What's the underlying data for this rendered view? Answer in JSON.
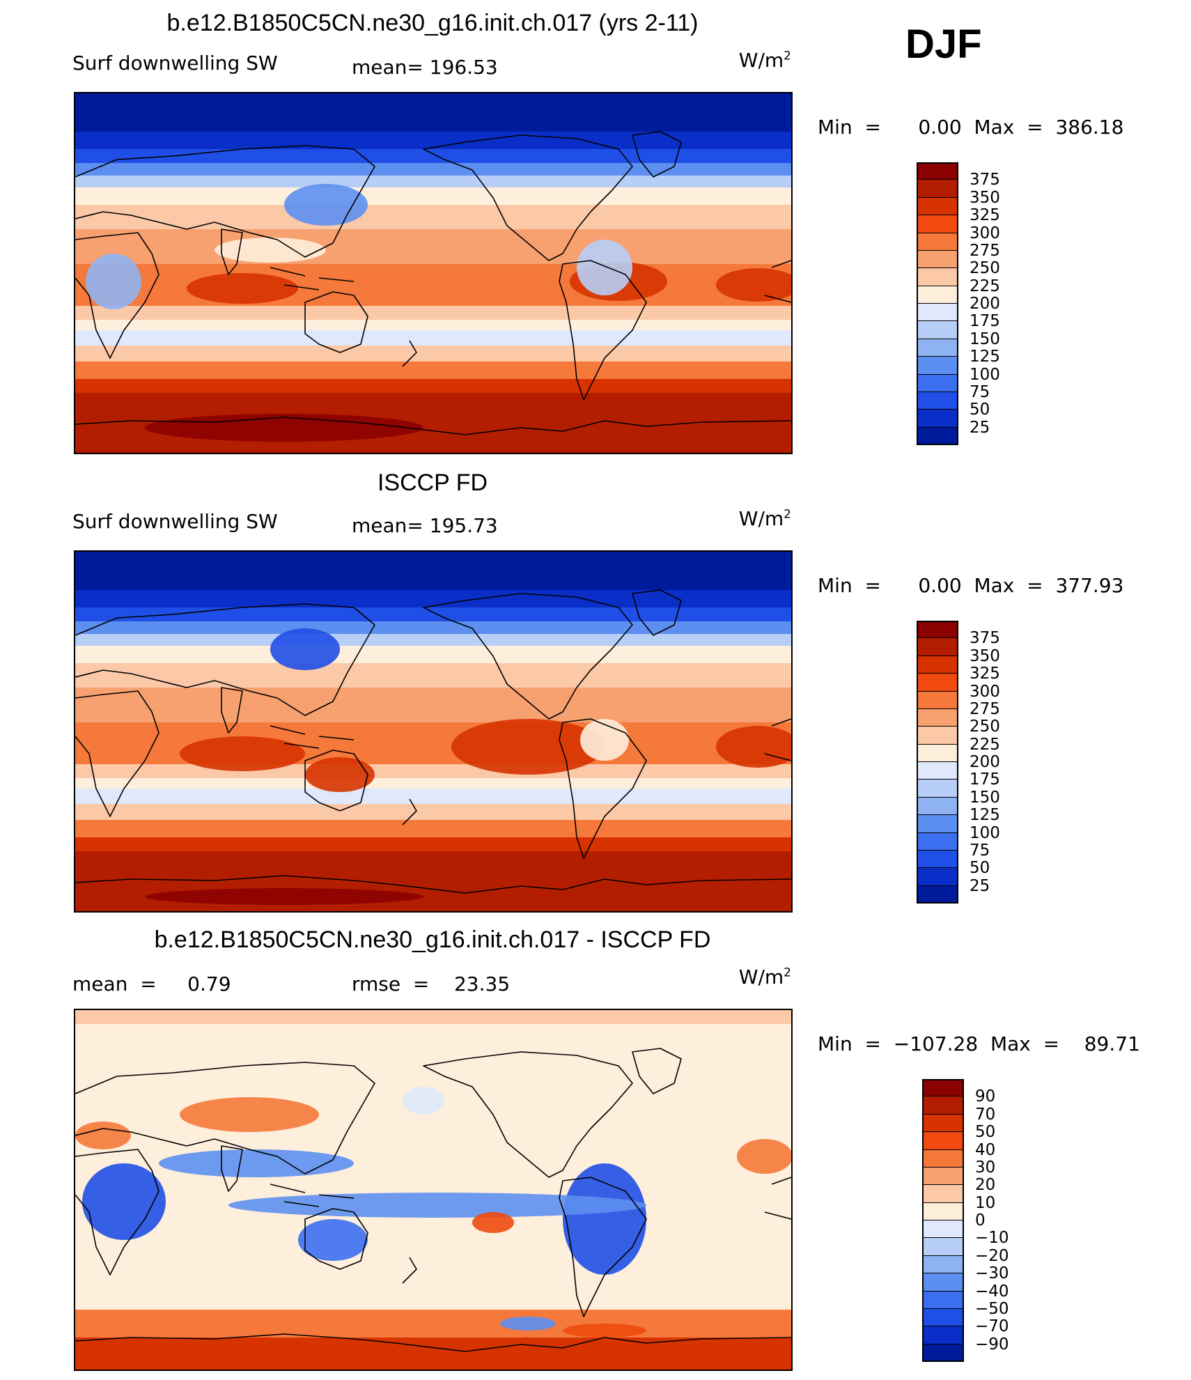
{
  "season": "DJF",
  "units": "W/m",
  "units_sup": "2",
  "panels": [
    {
      "title": "b.e12.B1850C5CN.ne30_g16.init.ch.017 (yrs 2-11)",
      "variable": "Surf downwelling SW",
      "stat1": "mean=  196.53",
      "stat2": "",
      "minmax": "Min  =      0.00  Max  =  386.18",
      "colorbar_ticks": [
        "375",
        "350",
        "325",
        "300",
        "275",
        "250",
        "225",
        "200",
        "175",
        "150",
        "125",
        "100",
        "75",
        "50",
        "25"
      ],
      "colors": [
        "#8b0000",
        "#b41e00",
        "#d73300",
        "#f04a10",
        "#f5793a",
        "#f7a070",
        "#fbc8a8",
        "#feeedc",
        "#dfe9fb",
        "#b7cef6",
        "#8fb2f2",
        "#5d8ff0",
        "#3c6ff0",
        "#1f4fe6",
        "#0a2fc8",
        "#001a9c"
      ]
    },
    {
      "title": "ISCCP FD",
      "variable": "Surf downwelling SW",
      "stat1": "mean=  195.73",
      "stat2": "",
      "minmax": "Min  =      0.00  Max  =  377.93",
      "colorbar_ticks": [
        "375",
        "350",
        "325",
        "300",
        "275",
        "250",
        "225",
        "200",
        "175",
        "150",
        "125",
        "100",
        "75",
        "50",
        "25"
      ],
      "colors": [
        "#8b0000",
        "#b41e00",
        "#d73300",
        "#f04a10",
        "#f5793a",
        "#f7a070",
        "#fbc8a8",
        "#feeedc",
        "#dfe9fb",
        "#b7cef6",
        "#8fb2f2",
        "#5d8ff0",
        "#3c6ff0",
        "#1f4fe6",
        "#0a2fc8",
        "#001a9c"
      ]
    },
    {
      "title": "b.e12.B1850C5CN.ne30_g16.init.ch.017 - ISCCP FD",
      "variable": "mean  =     0.79",
      "stat1": "rmse  =    23.35",
      "stat2": "",
      "minmax": "Min  =  −107.28  Max  =    89.71",
      "colorbar_ticks": [
        "90",
        "70",
        "50",
        "40",
        "30",
        "20",
        "10",
        "0",
        "−10",
        "−20",
        "−30",
        "−40",
        "−50",
        "−70",
        "−90"
      ],
      "colors": [
        "#8b0000",
        "#b41e00",
        "#d73300",
        "#f04a10",
        "#f5793a",
        "#f7a070",
        "#fbc8a8",
        "#feeedc",
        "#dfe9fb",
        "#b7cef6",
        "#8fb2f2",
        "#5d8ff0",
        "#3c6ff0",
        "#1f4fe6",
        "#0a2fc8",
        "#001a9c"
      ]
    }
  ]
}
